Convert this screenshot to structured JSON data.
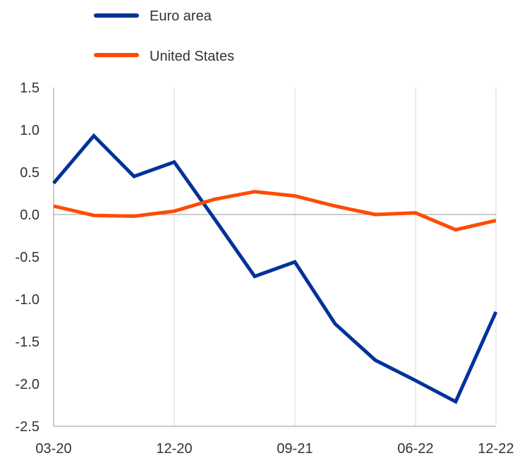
{
  "chart_data": {
    "type": "line",
    "x": [
      "03-20",
      "06-20",
      "09-20",
      "12-20",
      "03-21",
      "06-21",
      "09-21",
      "12-21",
      "03-22",
      "06-22",
      "09-22",
      "12-22"
    ],
    "x_tick_labels": [
      "03-20",
      "12-20",
      "09-21",
      "06-22",
      "12-22"
    ],
    "y_tick_labels": [
      "1.5",
      "1.0",
      "0.5",
      "0.0",
      "-0.5",
      "-1.0",
      "-1.5",
      "-2.0",
      "-2.5"
    ],
    "ylim": [
      -2.5,
      1.5
    ],
    "grid": "vertical",
    "legend_position": "top-left",
    "series": [
      {
        "name": "Euro area",
        "color": "#003299",
        "values": [
          0.37,
          0.93,
          0.45,
          0.62,
          -0.05,
          -0.73,
          -0.56,
          -1.29,
          -1.72,
          -1.96,
          -2.21,
          -1.15
        ]
      },
      {
        "name": "United States",
        "color": "#ff4b00",
        "values": [
          0.1,
          -0.01,
          -0.02,
          0.04,
          0.18,
          0.27,
          0.22,
          0.1,
          0.0,
          0.02,
          -0.18,
          -0.07
        ]
      }
    ]
  }
}
